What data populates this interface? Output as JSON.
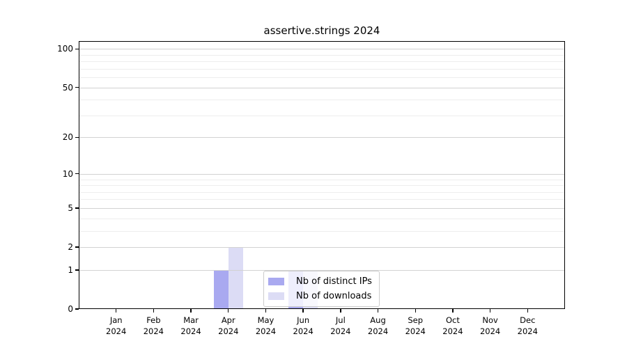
{
  "chart_data": {
    "type": "bar",
    "title": "assertive.strings 2024",
    "categories": [
      "Jan",
      "Feb",
      "Mar",
      "Apr",
      "May",
      "Jun",
      "Jul",
      "Aug",
      "Sep",
      "Oct",
      "Nov",
      "Dec"
    ],
    "tick_year": "2024",
    "series": [
      {
        "name": "Nb of distinct IPs",
        "color": "#a9a9f0",
        "values": [
          0,
          0,
          0,
          1,
          0,
          1,
          0,
          0,
          0,
          0,
          0,
          0
        ]
      },
      {
        "name": "Nb of downloads",
        "color": "#dcdcf5",
        "values": [
          0,
          0,
          0,
          2,
          0,
          1,
          0,
          0,
          0,
          0,
          0,
          0
        ]
      }
    ],
    "xlabel": "",
    "ylabel": "",
    "yscale": "log1p",
    "ylim": [
      0,
      115
    ],
    "yticks": [
      0,
      1,
      2,
      5,
      10,
      20,
      50,
      100
    ],
    "yticks_minor": [
      3,
      4,
      6,
      7,
      8,
      9,
      30,
      40,
      60,
      70,
      80,
      90
    ],
    "grid": "on",
    "legend_position": "lower center-right inside plot"
  }
}
